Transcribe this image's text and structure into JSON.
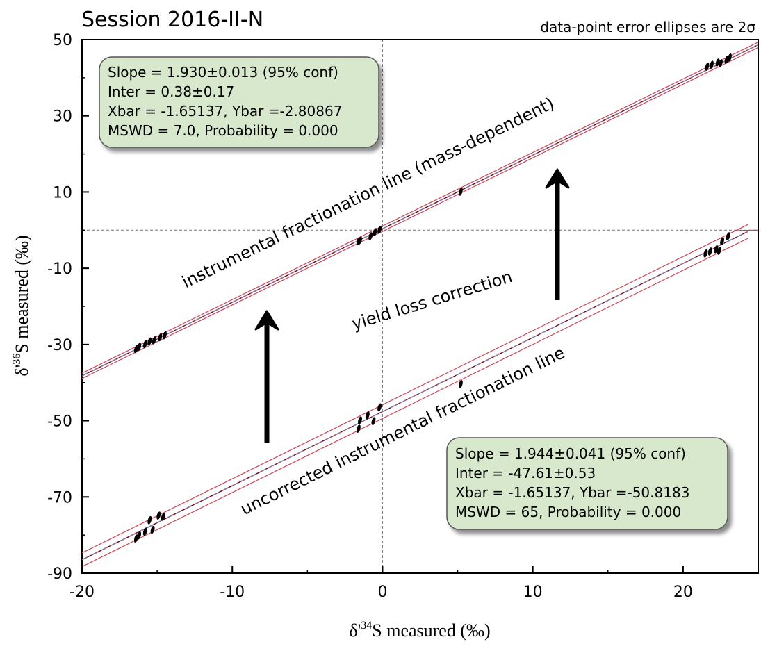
{
  "chart_data": {
    "type": "scatter",
    "title": "Session 2016-II-N",
    "note": "data-point error ellipses are 2σ",
    "xlabel": {
      "prefix": "δ'",
      "sup": "34",
      "rest": "S measured (‰)"
    },
    "ylabel": {
      "prefix": "δ'",
      "sup": "36",
      "rest": "S measured (‰)"
    },
    "xlim": [
      -20,
      25
    ],
    "ylim": [
      -90,
      50
    ],
    "xticks": [
      -20,
      -10,
      0,
      10,
      20
    ],
    "yticks": [
      -90,
      -70,
      -50,
      -30,
      -10,
      10,
      30,
      50
    ],
    "grid": false,
    "reference_lines": {
      "x": 0,
      "y": 0
    },
    "series": [
      {
        "line_label": "instrumental fractionation line (mass-dependent)",
        "fit": {
          "slope": 1.93,
          "intercept": 0.38
        },
        "stats": [
          "Slope = 1.930±0.013 (95% conf)",
          "Inter = 0.38±0.17",
          "Xbar = -1.65137,  Ybar =-2.80867",
          "MSWD = 7.0,  Probability = 0.000"
        ],
        "x": [
          -16.4,
          -16.2,
          -15.8,
          -15.5,
          -15.2,
          -14.8,
          -14.5,
          -1.6,
          -1.5,
          -0.8,
          -0.5,
          -0.2,
          5.2,
          21.6,
          21.9,
          22.3,
          22.5,
          22.9,
          23.1
        ],
        "y": [
          -31.2,
          -30.6,
          -29.9,
          -29.2,
          -28.9,
          -28.1,
          -27.6,
          -2.9,
          -2.7,
          -1.6,
          -0.5,
          0.1,
          10.1,
          42.9,
          43.4,
          44.0,
          43.8,
          44.7,
          45.3
        ]
      },
      {
        "line_label": "uncorrected instrumental fractionation line",
        "fit": {
          "slope": 1.944,
          "intercept": -47.61
        },
        "stats": [
          "Slope = 1.944±0.041 (95% conf)",
          "Inter = -47.61±0.53",
          "Xbar = -1.65137,  Ybar =-50.8183",
          "MSWD = 65,  Probability = 0.000"
        ],
        "x": [
          -16.4,
          -16.2,
          -15.8,
          -15.5,
          -15.3,
          -14.9,
          -14.6,
          -1.6,
          -1.5,
          -1.0,
          -0.6,
          -0.2,
          5.2,
          21.5,
          21.8,
          22.2,
          22.4,
          22.6,
          23.0
        ],
        "y": [
          -80.9,
          -80.1,
          -79.1,
          -76.1,
          -78.6,
          -74.9,
          -75.2,
          -52.1,
          -49.9,
          -48.6,
          -50.1,
          -46.5,
          -40.4,
          -6.1,
          -5.6,
          -5.0,
          -5.4,
          -2.9,
          -1.6
        ]
      }
    ],
    "annotations": [
      "yield loss correction"
    ],
    "colors": {
      "fit_line": "#7a0000",
      "envelope": "#cc4455",
      "centre_dash": "#7788cc",
      "stats_box_fill": "#d8e8cd",
      "stats_box_stroke": "#555555",
      "points": "#000000"
    }
  }
}
